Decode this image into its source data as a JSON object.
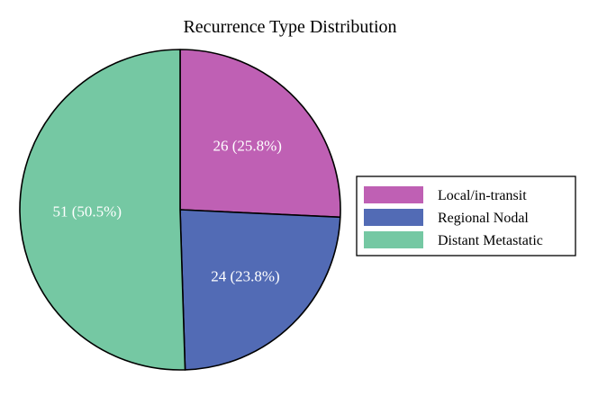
{
  "chart_data": {
    "type": "pie",
    "title": "Recurrence Type Distribution",
    "categories": [
      "Local/in-transit",
      "Regional Nodal",
      "Distant Metastatic"
    ],
    "values": [
      26,
      24,
      51
    ],
    "percentages": [
      25.8,
      23.8,
      50.5
    ],
    "labels": [
      "26 (25.8%)",
      "24 (23.8%)",
      "51 (50.5%)"
    ],
    "colors": [
      "#bf60b4",
      "#526bb5",
      "#75c8a3"
    ],
    "start_angle_deg": 90,
    "direction": "clockwise",
    "legend_position": "right"
  }
}
